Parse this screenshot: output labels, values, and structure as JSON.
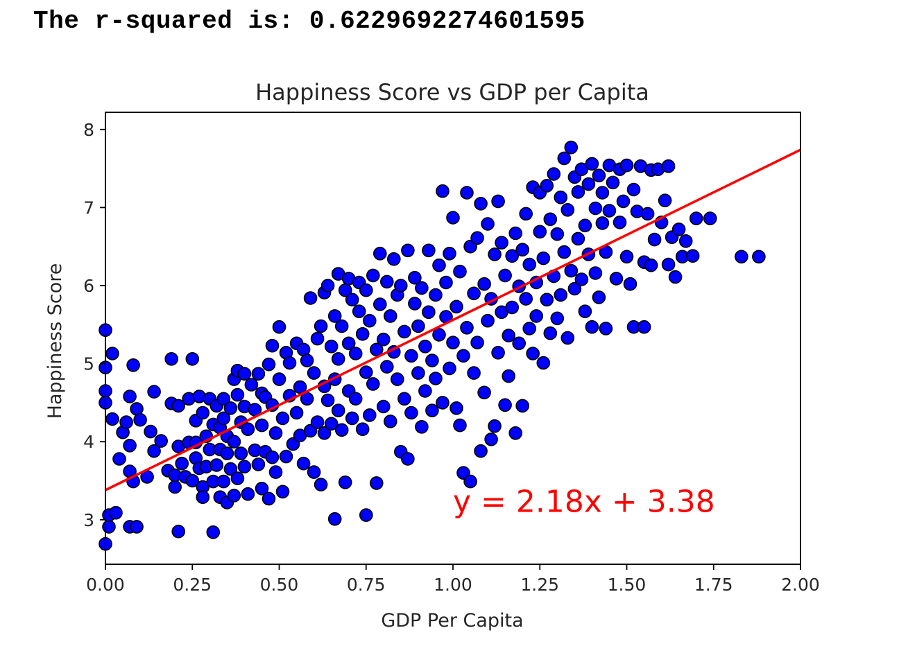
{
  "output": {
    "label": "The r-squared is: ",
    "value": "0.6229692274601595"
  },
  "chart_data": {
    "type": "scatter",
    "title": "Happiness Score vs GDP per Capita",
    "xlabel": "GDP Per Capita",
    "ylabel": "Happiness Score",
    "xlim": [
      0,
      2.0
    ],
    "ylim": [
      2.43,
      8.22
    ],
    "xticks": [
      "0.00",
      "0.25",
      "0.50",
      "0.75",
      "1.00",
      "1.25",
      "1.50",
      "1.75",
      "2.00"
    ],
    "yticks": [
      "3",
      "4",
      "5",
      "6",
      "7",
      "8"
    ],
    "grid": false,
    "legend": "none",
    "marker_color": "#0000ff",
    "marker_edge": "#000000",
    "line_color": "#ff0000",
    "regression": {
      "slope": 2.18,
      "intercept": 3.38,
      "x_range": [
        0,
        2.0
      ],
      "equation": "y = 2.18x + 3.38",
      "equation_anchor": [
        1.0,
        3.1
      ]
    },
    "points": [
      [
        0.0,
        5.43
      ],
      [
        0.0,
        4.95
      ],
      [
        0.0,
        4.65
      ],
      [
        0.0,
        4.5
      ],
      [
        0.0,
        2.69
      ],
      [
        0.01,
        2.91
      ],
      [
        0.01,
        3.06
      ],
      [
        0.02,
        5.13
      ],
      [
        0.02,
        4.29
      ],
      [
        0.03,
        3.09
      ],
      [
        0.04,
        3.78
      ],
      [
        0.05,
        4.12
      ],
      [
        0.06,
        4.25
      ],
      [
        0.07,
        4.58
      ],
      [
        0.07,
        3.95
      ],
      [
        0.07,
        3.62
      ],
      [
        0.07,
        2.91
      ],
      [
        0.08,
        3.49
      ],
      [
        0.08,
        4.98
      ],
      [
        0.09,
        4.42
      ],
      [
        0.09,
        2.91
      ],
      [
        0.1,
        4.28
      ],
      [
        0.12,
        3.55
      ],
      [
        0.13,
        4.13
      ],
      [
        0.14,
        3.88
      ],
      [
        0.14,
        4.64
      ],
      [
        0.16,
        4.01
      ],
      [
        0.18,
        3.63
      ],
      [
        0.19,
        5.06
      ],
      [
        0.19,
        4.49
      ],
      [
        0.2,
        3.42
      ],
      [
        0.2,
        3.57
      ],
      [
        0.21,
        4.46
      ],
      [
        0.21,
        3.94
      ],
      [
        0.21,
        2.85
      ],
      [
        0.22,
        3.72
      ],
      [
        0.23,
        3.55
      ],
      [
        0.24,
        3.99
      ],
      [
        0.24,
        4.55
      ],
      [
        0.25,
        3.5
      ],
      [
        0.25,
        5.06
      ],
      [
        0.26,
        4.27
      ],
      [
        0.26,
        3.99
      ],
      [
        0.26,
        3.79
      ],
      [
        0.27,
        4.58
      ],
      [
        0.27,
        3.66
      ],
      [
        0.28,
        3.42
      ],
      [
        0.28,
        4.37
      ],
      [
        0.28,
        3.29
      ],
      [
        0.29,
        4.07
      ],
      [
        0.29,
        3.68
      ],
      [
        0.3,
        3.9
      ],
      [
        0.3,
        4.55
      ],
      [
        0.31,
        4.22
      ],
      [
        0.31,
        2.84
      ],
      [
        0.31,
        3.49
      ],
      [
        0.32,
        4.46
      ],
      [
        0.32,
        3.7
      ],
      [
        0.33,
        3.29
      ],
      [
        0.33,
        4.18
      ],
      [
        0.33,
        3.9
      ],
      [
        0.34,
        4.55
      ],
      [
        0.34,
        3.49
      ],
      [
        0.34,
        4.3
      ],
      [
        0.35,
        3.22
      ],
      [
        0.35,
        3.85
      ],
      [
        0.35,
        4.07
      ],
      [
        0.36,
        4.43
      ],
      [
        0.36,
        3.65
      ],
      [
        0.37,
        4.8
      ],
      [
        0.37,
        4.0
      ],
      [
        0.37,
        3.31
      ],
      [
        0.38,
        4.91
      ],
      [
        0.38,
        4.6
      ],
      [
        0.38,
        3.53
      ],
      [
        0.39,
        4.25
      ],
      [
        0.39,
        3.85
      ],
      [
        0.4,
        4.87
      ],
      [
        0.4,
        3.68
      ],
      [
        0.4,
        4.45
      ],
      [
        0.41,
        3.33
      ],
      [
        0.41,
        4.16
      ],
      [
        0.42,
        4.73
      ],
      [
        0.43,
        3.89
      ],
      [
        0.43,
        4.41
      ],
      [
        0.44,
        3.71
      ],
      [
        0.44,
        4.87
      ],
      [
        0.45,
        4.62
      ],
      [
        0.45,
        3.4
      ],
      [
        0.45,
        4.21
      ],
      [
        0.46,
        3.87
      ],
      [
        0.46,
        4.57
      ],
      [
        0.47,
        3.27
      ],
      [
        0.47,
        4.99
      ],
      [
        0.48,
        5.23
      ],
      [
        0.48,
        3.8
      ],
      [
        0.48,
        4.47
      ],
      [
        0.49,
        4.11
      ],
      [
        0.49,
        3.61
      ],
      [
        0.5,
        5.47
      ],
      [
        0.5,
        4.8
      ],
      [
        0.51,
        3.36
      ],
      [
        0.51,
        4.3
      ],
      [
        0.52,
        5.14
      ],
      [
        0.52,
        3.81
      ],
      [
        0.53,
        4.59
      ],
      [
        0.53,
        5.01
      ],
      [
        0.54,
        3.97
      ],
      [
        0.55,
        4.37
      ],
      [
        0.55,
        5.26
      ],
      [
        0.56,
        4.7
      ],
      [
        0.56,
        4.08
      ],
      [
        0.57,
        5.18
      ],
      [
        0.57,
        3.72
      ],
      [
        0.58,
        4.55
      ],
      [
        0.58,
        5.04
      ],
      [
        0.59,
        5.84
      ],
      [
        0.59,
        4.14
      ],
      [
        0.6,
        3.61
      ],
      [
        0.6,
        4.88
      ],
      [
        0.61,
        5.32
      ],
      [
        0.61,
        4.25
      ],
      [
        0.62,
        3.45
      ],
      [
        0.62,
        5.48
      ],
      [
        0.63,
        4.71
      ],
      [
        0.63,
        5.91
      ],
      [
        0.63,
        4.11
      ],
      [
        0.64,
        6.0
      ],
      [
        0.64,
        4.53
      ],
      [
        0.65,
        5.22
      ],
      [
        0.65,
        4.23
      ],
      [
        0.66,
        4.8
      ],
      [
        0.66,
        5.61
      ],
      [
        0.66,
        3.01
      ],
      [
        0.67,
        6.15
      ],
      [
        0.67,
        4.4
      ],
      [
        0.67,
        5.06
      ],
      [
        0.68,
        5.48
      ],
      [
        0.68,
        4.15
      ],
      [
        0.69,
        3.48
      ],
      [
        0.69,
        5.94
      ],
      [
        0.7,
        4.65
      ],
      [
        0.7,
        5.26
      ],
      [
        0.7,
        6.09
      ],
      [
        0.71,
        4.3
      ],
      [
        0.71,
        5.82
      ],
      [
        0.72,
        5.13
      ],
      [
        0.72,
        4.55
      ],
      [
        0.73,
        5.67
      ],
      [
        0.73,
        6.04
      ],
      [
        0.74,
        4.16
      ],
      [
        0.74,
        5.38
      ],
      [
        0.75,
        4.89
      ],
      [
        0.75,
        3.06
      ],
      [
        0.75,
        5.94
      ],
      [
        0.76,
        4.34
      ],
      [
        0.76,
        5.55
      ],
      [
        0.77,
        6.13
      ],
      [
        0.77,
        4.74
      ],
      [
        0.78,
        5.18
      ],
      [
        0.78,
        3.47
      ],
      [
        0.79,
        6.41
      ],
      [
        0.79,
        5.76
      ],
      [
        0.8,
        4.45
      ],
      [
        0.8,
        5.31
      ],
      [
        0.81,
        6.05
      ],
      [
        0.81,
        4.96
      ],
      [
        0.82,
        5.61
      ],
      [
        0.82,
        4.26
      ],
      [
        0.83,
        6.34
      ],
      [
        0.83,
        5.15
      ],
      [
        0.84,
        5.88
      ],
      [
        0.84,
        4.8
      ],
      [
        0.85,
        3.87
      ],
      [
        0.85,
        6.0
      ],
      [
        0.86,
        5.41
      ],
      [
        0.86,
        4.55
      ],
      [
        0.87,
        3.78
      ],
      [
        0.87,
        6.45
      ],
      [
        0.88,
        5.1
      ],
      [
        0.88,
        4.37
      ],
      [
        0.89,
        5.77
      ],
      [
        0.89,
        6.1
      ],
      [
        0.9,
        4.88
      ],
      [
        0.9,
        5.48
      ],
      [
        0.91,
        4.19
      ],
      [
        0.91,
        5.97
      ],
      [
        0.92,
        5.22
      ],
      [
        0.92,
        4.65
      ],
      [
        0.93,
        6.45
      ],
      [
        0.93,
        5.66
      ],
      [
        0.94,
        4.4
      ],
      [
        0.94,
        5.04
      ],
      [
        0.95,
        5.88
      ],
      [
        0.95,
        4.81
      ],
      [
        0.96,
        6.26
      ],
      [
        0.96,
        5.37
      ],
      [
        0.97,
        7.21
      ],
      [
        0.97,
        4.5
      ],
      [
        0.98,
        5.6
      ],
      [
        0.98,
        6.04
      ],
      [
        0.99,
        4.94
      ],
      [
        0.99,
        6.41
      ],
      [
        1.0,
        5.27
      ],
      [
        1.0,
        6.87
      ],
      [
        1.01,
        4.43
      ],
      [
        1.01,
        5.73
      ],
      [
        1.02,
        6.18
      ],
      [
        1.02,
        4.21
      ],
      [
        1.03,
        3.6
      ],
      [
        1.03,
        5.1
      ],
      [
        1.04,
        7.19
      ],
      [
        1.04,
        5.46
      ],
      [
        1.05,
        6.5
      ],
      [
        1.05,
        3.49
      ],
      [
        1.06,
        4.88
      ],
      [
        1.06,
        5.9
      ],
      [
        1.07,
        6.61
      ],
      [
        1.07,
        5.27
      ],
      [
        1.08,
        7.05
      ],
      [
        1.08,
        3.88
      ],
      [
        1.09,
        6.02
      ],
      [
        1.09,
        4.63
      ],
      [
        1.1,
        5.55
      ],
      [
        1.1,
        6.79
      ],
      [
        1.11,
        4.03
      ],
      [
        1.11,
        5.83
      ],
      [
        1.12,
        6.4
      ],
      [
        1.12,
        4.2
      ],
      [
        1.13,
        5.14
      ],
      [
        1.13,
        7.08
      ],
      [
        1.14,
        5.66
      ],
      [
        1.14,
        6.55
      ],
      [
        1.15,
        4.47
      ],
      [
        1.15,
        6.13
      ],
      [
        1.16,
        5.36
      ],
      [
        1.16,
        4.84
      ],
      [
        1.17,
        6.38
      ],
      [
        1.17,
        5.72
      ],
      [
        1.18,
        6.67
      ],
      [
        1.18,
        4.11
      ],
      [
        1.19,
        5.99
      ],
      [
        1.19,
        5.26
      ],
      [
        1.2,
        4.46
      ],
      [
        1.2,
        6.46
      ],
      [
        1.21,
        5.83
      ],
      [
        1.21,
        6.92
      ],
      [
        1.22,
        5.45
      ],
      [
        1.22,
        6.27
      ],
      [
        1.23,
        5.13
      ],
      [
        1.23,
        7.26
      ],
      [
        1.24,
        6.04
      ],
      [
        1.24,
        5.61
      ],
      [
        1.25,
        6.69
      ],
      [
        1.25,
        7.19
      ],
      [
        1.26,
        5.01
      ],
      [
        1.26,
        6.35
      ],
      [
        1.27,
        5.82
      ],
      [
        1.27,
        7.28
      ],
      [
        1.28,
        6.85
      ],
      [
        1.28,
        5.39
      ],
      [
        1.29,
        6.12
      ],
      [
        1.29,
        7.43
      ],
      [
        1.3,
        5.58
      ],
      [
        1.3,
        6.66
      ],
      [
        1.31,
        7.13
      ],
      [
        1.31,
        5.88
      ],
      [
        1.32,
        6.43
      ],
      [
        1.32,
        7.63
      ],
      [
        1.33,
        5.33
      ],
      [
        1.33,
        6.97
      ],
      [
        1.34,
        6.19
      ],
      [
        1.34,
        7.77
      ],
      [
        1.35,
        7.39
      ],
      [
        1.35,
        5.96
      ],
      [
        1.36,
        6.6
      ],
      [
        1.36,
        7.2
      ],
      [
        1.37,
        6.08
      ],
      [
        1.37,
        7.49
      ],
      [
        1.38,
        6.77
      ],
      [
        1.38,
        5.67
      ],
      [
        1.39,
        7.3
      ],
      [
        1.39,
        6.4
      ],
      [
        1.4,
        7.56
      ],
      [
        1.4,
        5.47
      ],
      [
        1.41,
        6.99
      ],
      [
        1.41,
        6.16
      ],
      [
        1.42,
        7.41
      ],
      [
        1.42,
        5.85
      ],
      [
        1.43,
        6.8
      ],
      [
        1.43,
        7.19
      ],
      [
        1.44,
        5.45
      ],
      [
        1.44,
        6.43
      ],
      [
        1.45,
        7.54
      ],
      [
        1.45,
        6.96
      ],
      [
        1.46,
        7.32
      ],
      [
        1.47,
        6.09
      ],
      [
        1.48,
        7.49
      ],
      [
        1.48,
        6.81
      ],
      [
        1.49,
        7.08
      ],
      [
        1.5,
        6.37
      ],
      [
        1.5,
        7.54
      ],
      [
        1.51,
        6.02
      ],
      [
        1.52,
        7.23
      ],
      [
        1.52,
        5.47
      ],
      [
        1.53,
        6.95
      ],
      [
        1.54,
        7.53
      ],
      [
        1.55,
        6.3
      ],
      [
        1.55,
        5.47
      ],
      [
        1.56,
        6.92
      ],
      [
        1.57,
        6.26
      ],
      [
        1.57,
        7.48
      ],
      [
        1.58,
        6.59
      ],
      [
        1.59,
        7.49
      ],
      [
        1.6,
        6.81
      ],
      [
        1.61,
        7.09
      ],
      [
        1.62,
        6.27
      ],
      [
        1.62,
        7.53
      ],
      [
        1.63,
        6.62
      ],
      [
        1.64,
        6.11
      ],
      [
        1.65,
        6.72
      ],
      [
        1.66,
        6.37
      ],
      [
        1.67,
        6.57
      ],
      [
        1.69,
        6.38
      ],
      [
        1.7,
        6.86
      ],
      [
        1.74,
        6.86
      ],
      [
        1.83,
        6.37
      ],
      [
        1.88,
        6.37
      ]
    ]
  }
}
